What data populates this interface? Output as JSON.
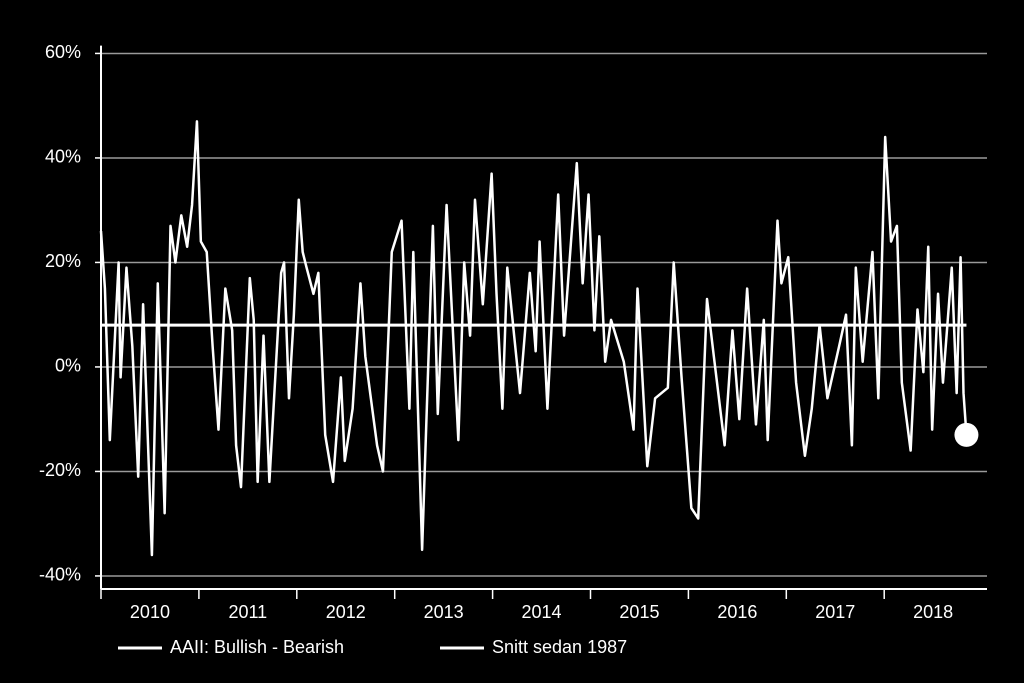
{
  "chart_data": {
    "type": "line",
    "xlim": [
      2010,
      2019.05
    ],
    "ylim": [
      -42.5,
      61.5
    ],
    "yticks": [
      {
        "value": -40,
        "label": "-40%"
      },
      {
        "value": -20,
        "label": "-20%"
      },
      {
        "value": 0,
        "label": "0%"
      },
      {
        "value": 20,
        "label": "20%"
      },
      {
        "value": 40,
        "label": "40%"
      },
      {
        "value": 60,
        "label": "60%"
      }
    ],
    "xticks": [
      {
        "value": 2010,
        "label": "2010"
      },
      {
        "value": 2011,
        "label": "2011"
      },
      {
        "value": 2012,
        "label": "2012"
      },
      {
        "value": 2013,
        "label": "2013"
      },
      {
        "value": 2014,
        "label": "2014"
      },
      {
        "value": 2015,
        "label": "2015"
      },
      {
        "value": 2016,
        "label": "2016"
      },
      {
        "value": 2017,
        "label": "2017"
      },
      {
        "value": 2018,
        "label": "2018"
      }
    ],
    "grid": true,
    "legend": "bottom",
    "series": [
      {
        "name": "AAII: Bullish - Bearish",
        "color": "#ffffff",
        "x": [
          2010.0,
          2010.04,
          2010.09,
          2010.18,
          2010.2,
          2010.26,
          2010.32,
          2010.38,
          2010.43,
          2010.52,
          2010.58,
          2010.65,
          2010.71,
          2010.76,
          2010.82,
          2010.88,
          2010.93,
          2010.98,
          2011.02,
          2011.08,
          2011.14,
          2011.2,
          2011.27,
          2011.34,
          2011.38,
          2011.43,
          2011.52,
          2011.56,
          2011.6,
          2011.66,
          2011.72,
          2011.84,
          2011.87,
          2011.92,
          2011.97,
          2012.02,
          2012.06,
          2012.1,
          2012.17,
          2012.22,
          2012.29,
          2012.37,
          2012.45,
          2012.49,
          2012.57,
          2012.65,
          2012.7,
          2012.82,
          2012.88,
          2012.97,
          2013.07,
          2013.15,
          2013.19,
          2013.28,
          2013.39,
          2013.44,
          2013.53,
          2013.65,
          2013.71,
          2013.77,
          2013.82,
          2013.9,
          2013.99,
          2014.04,
          2014.1,
          2014.15,
          2014.22,
          2014.28,
          2014.38,
          2014.44,
          2014.48,
          2014.56,
          2014.67,
          2014.73,
          2014.86,
          2014.92,
          2014.98,
          2015.04,
          2015.09,
          2015.15,
          2015.21,
          2015.34,
          2015.44,
          2015.48,
          2015.58,
          2015.66,
          2015.79,
          2015.85,
          2015.93,
          2016.03,
          2016.1,
          2016.19,
          2016.26,
          2016.37,
          2016.45,
          2016.52,
          2016.6,
          2016.69,
          2016.77,
          2016.81,
          2016.91,
          2016.95,
          2017.02,
          2017.1,
          2017.19,
          2017.26,
          2017.34,
          2017.42,
          2017.54,
          2017.61,
          2017.67,
          2017.71,
          2017.78,
          2017.88,
          2017.94,
          2018.01,
          2018.07,
          2018.13,
          2018.18,
          2018.27,
          2018.34,
          2018.4,
          2018.45,
          2018.49,
          2018.55,
          2018.6,
          2018.69,
          2018.74,
          2018.78,
          2018.81,
          2018.84
        ],
        "values": [
          26,
          15,
          -14,
          20,
          -2,
          19,
          4,
          -21,
          12,
          -36,
          16,
          -28,
          27,
          20,
          29,
          23,
          31,
          47,
          24,
          22,
          4,
          -12,
          15,
          7,
          -15,
          -23,
          17,
          9,
          -22,
          6,
          -22,
          18,
          20,
          -6,
          10,
          32,
          22,
          19,
          14,
          18,
          -13,
          -22,
          -2,
          -18,
          -8,
          16,
          2,
          -15,
          -20,
          22,
          28,
          -8,
          22,
          -35,
          27,
          -9,
          31,
          -14,
          20,
          6,
          32,
          12,
          37,
          14,
          -8,
          19,
          6,
          -5,
          18,
          3,
          24,
          -8,
          33,
          6,
          39,
          16,
          33,
          7,
          25,
          1,
          9,
          1,
          -12,
          15,
          -19,
          -6,
          -4,
          20,
          -2,
          -27,
          -29,
          13,
          2,
          -15,
          7,
          -10,
          15,
          -11,
          9,
          -14,
          28,
          16,
          21,
          -3,
          -17,
          -8,
          8,
          -6,
          4,
          10,
          -15,
          19,
          1,
          22,
          -6,
          44,
          24,
          27,
          -3,
          -16,
          11,
          -1,
          23,
          -12,
          14,
          -3,
          19,
          -5,
          21,
          -5,
          -13
        ]
      },
      {
        "name": "Snitt sedan 1987",
        "color": "#ffffff",
        "x": [
          2010,
          2018.84
        ],
        "values": [
          8,
          8
        ]
      }
    ]
  }
}
